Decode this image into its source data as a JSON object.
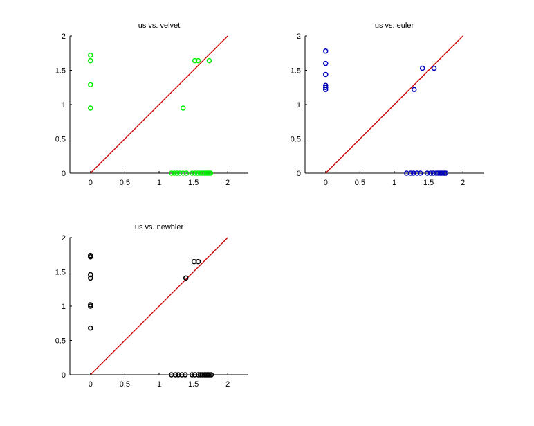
{
  "figure": {
    "background": "#ffffff"
  },
  "chart_data": [
    {
      "type": "scatter",
      "title": "us vs. velvet",
      "xlabel": "",
      "ylabel": "",
      "xlim": [
        -0.3,
        2.3
      ],
      "ylim": [
        0,
        2
      ],
      "xticks": [
        "0",
        "0.5",
        "1",
        "1.5",
        "2"
      ],
      "yticks": [
        "0",
        "0.5",
        "1",
        "1.5",
        "2"
      ],
      "grid": false,
      "marker_color": "#00ee00",
      "line_color": "#cc0000",
      "reference_line": {
        "x": [
          0,
          2
        ],
        "y": [
          0,
          2
        ]
      },
      "points": {
        "x": [
          0,
          0,
          0,
          0,
          1.35,
          1.52,
          1.57,
          1.73,
          1.18,
          1.22,
          1.26,
          1.3,
          1.35,
          1.4,
          1.48,
          1.52,
          1.56,
          1.6,
          1.63,
          1.66,
          1.69,
          1.71,
          1.73,
          1.75
        ],
        "y": [
          1.72,
          1.64,
          1.29,
          0.95,
          0.95,
          1.64,
          1.64,
          1.64,
          0,
          0,
          0,
          0,
          0,
          0,
          0,
          0,
          0,
          0,
          0,
          0,
          0,
          0,
          0,
          0
        ]
      }
    },
    {
      "type": "scatter",
      "title": "us vs. euler",
      "xlabel": "",
      "ylabel": "",
      "xlim": [
        -0.3,
        2.3
      ],
      "ylim": [
        0,
        2
      ],
      "xticks": [
        "0",
        "0.5",
        "1",
        "1.5",
        "2"
      ],
      "yticks": [
        "0",
        "0.5",
        "1",
        "1.5",
        "2"
      ],
      "grid": false,
      "marker_color": "#0000bb",
      "line_color": "#cc0000",
      "reference_line": {
        "x": [
          0,
          2
        ],
        "y": [
          0,
          2
        ]
      },
      "points": {
        "x": [
          0,
          0,
          0,
          0,
          0,
          0,
          1.41,
          1.58,
          1.29,
          1.18,
          1.24,
          1.28,
          1.33,
          1.38,
          1.48,
          1.53,
          1.57,
          1.61,
          1.64,
          1.67,
          1.69,
          1.71,
          1.73,
          1.75
        ],
        "y": [
          1.78,
          1.6,
          1.44,
          1.28,
          1.25,
          1.22,
          1.53,
          1.53,
          1.22,
          0,
          0,
          0,
          0,
          0,
          0,
          0,
          0,
          0,
          0,
          0,
          0,
          0,
          0,
          0
        ]
      }
    },
    {
      "type": "scatter",
      "title": "us vs. newbler",
      "xlabel": "",
      "ylabel": "",
      "xlim": [
        -0.3,
        2.3
      ],
      "ylim": [
        0,
        2
      ],
      "xticks": [
        "0",
        "0.5",
        "1",
        "1.5",
        "2"
      ],
      "yticks": [
        "0",
        "0.5",
        "1",
        "1.5",
        "2"
      ],
      "grid": false,
      "marker_color": "#000000",
      "line_color": "#cc0000",
      "reference_line": {
        "x": [
          0,
          2
        ],
        "y": [
          0,
          2
        ]
      },
      "points": {
        "x": [
          0,
          0,
          0,
          0,
          0,
          0,
          0,
          1.39,
          1.51,
          1.57,
          1.18,
          1.24,
          1.28,
          1.33,
          1.38,
          1.48,
          1.52,
          1.57,
          1.6,
          1.63,
          1.66,
          1.68,
          1.7,
          1.72,
          1.74,
          1.76
        ],
        "y": [
          1.74,
          1.72,
          1.46,
          1.41,
          1.02,
          1.0,
          0.68,
          1.41,
          1.65,
          1.65,
          0,
          0,
          0,
          0,
          0,
          0,
          0,
          0,
          0,
          0,
          0,
          0,
          0,
          0,
          0,
          0
        ]
      }
    }
  ]
}
